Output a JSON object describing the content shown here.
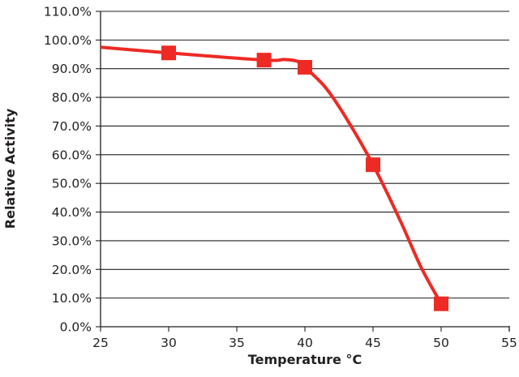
{
  "chart_data": {
    "type": "line",
    "title": "",
    "xlabel": "Temperature °C",
    "ylabel": "Relative Activity",
    "xlim": [
      25,
      55
    ],
    "ylim": [
      0,
      110
    ],
    "x_ticks": [
      25,
      30,
      35,
      40,
      45,
      50,
      55
    ],
    "y_ticks": [
      0,
      10,
      20,
      30,
      40,
      50,
      60,
      70,
      80,
      90,
      100,
      110
    ],
    "y_tick_format": "percent_1dp",
    "grid": "horizontal",
    "legend": "none",
    "series": [
      {
        "color": "#ed2a24",
        "marker": "square",
        "x": [
          30,
          37,
          40,
          45,
          50
        ],
        "y": [
          95.5,
          93.0,
          90.5,
          56.5,
          8.0
        ],
        "curve_x": [
          25,
          30,
          37,
          38.5,
          39.5,
          40,
          41.5,
          43,
          45,
          47,
          48.5,
          50
        ],
        "curve_y": [
          97.5,
          95.5,
          93.0,
          93.2,
          92.5,
          90.5,
          83.5,
          73.0,
          56.5,
          37.0,
          21.0,
          8.0
        ]
      }
    ]
  }
}
